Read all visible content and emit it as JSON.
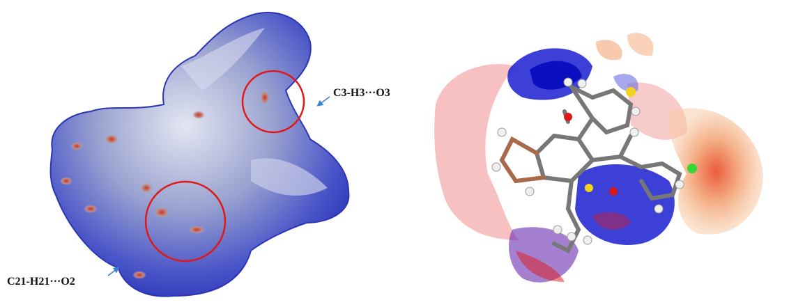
{
  "labels": {
    "top_contact": "C3-H3···O3",
    "bottom_contact": "C21-H21···O2"
  }
}
